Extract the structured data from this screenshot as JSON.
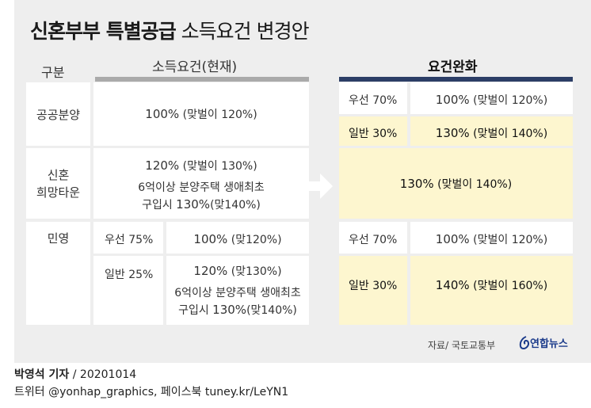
{
  "title": {
    "bold": "신혼부부 특별공급",
    "rest": " 소득요건 변경안"
  },
  "headers": {
    "category": "구분",
    "current": "소득요건(현재)",
    "relaxed": "요건완화"
  },
  "colors": {
    "current_bar": "#aaaaaa",
    "relaxed_bar": "#2c3e66",
    "highlight": "#fdf6cf"
  },
  "rows": {
    "public": {
      "label": "공공분양",
      "current": {
        "main": "100%",
        "sub": " (맞벌이 120%)"
      },
      "relaxed_priority": {
        "label": "우선 70%",
        "main": "100%",
        "sub": " (맞벌이 120%)"
      },
      "relaxed_general": {
        "label": "일반 30%",
        "main": "130%",
        "sub": " (맞벌이 140%)"
      }
    },
    "newlywed": {
      "label_line1": "신혼",
      "label_line2": "희망타운",
      "current_line1_main": "120%",
      "current_line1_sub": " (맞벌이 130%)",
      "current_line2": "6억이상 분양주택 생애최초",
      "current_line3_pre": "구입시 ",
      "current_line3_main": "130%",
      "current_line3_sub": "(맞140%)",
      "relaxed": {
        "main": "130%",
        "sub": " (맞벌이 140%)"
      }
    },
    "private": {
      "label": "민영",
      "current_priority": {
        "label": "우선 75%",
        "main": "100%",
        "sub": " (맞120%)"
      },
      "current_general": {
        "label": "일반 25%",
        "line1_main": "120%",
        "line1_sub": " (맞130%)",
        "line2": "6억이상 분양주택 생애최초",
        "line3_pre": "구입시 ",
        "line3_main": "130%",
        "line3_sub": "(맞140%)"
      },
      "relaxed_priority": {
        "label": "우선 70%",
        "main": "100%",
        "sub": " (맞벌이 120%)"
      },
      "relaxed_general": {
        "label": "일반 30%",
        "main": "140%",
        "sub": " (맞벌이 160%)"
      }
    }
  },
  "source": "자료/ 국토교통부",
  "logo_text": "연합뉴스",
  "footer": {
    "reporter": "박영석 기자",
    "date_sep": " / ",
    "date": "20201014",
    "social": "트위터 @yonhap_graphics, 페이스북 tuney.kr/LeYN1"
  }
}
